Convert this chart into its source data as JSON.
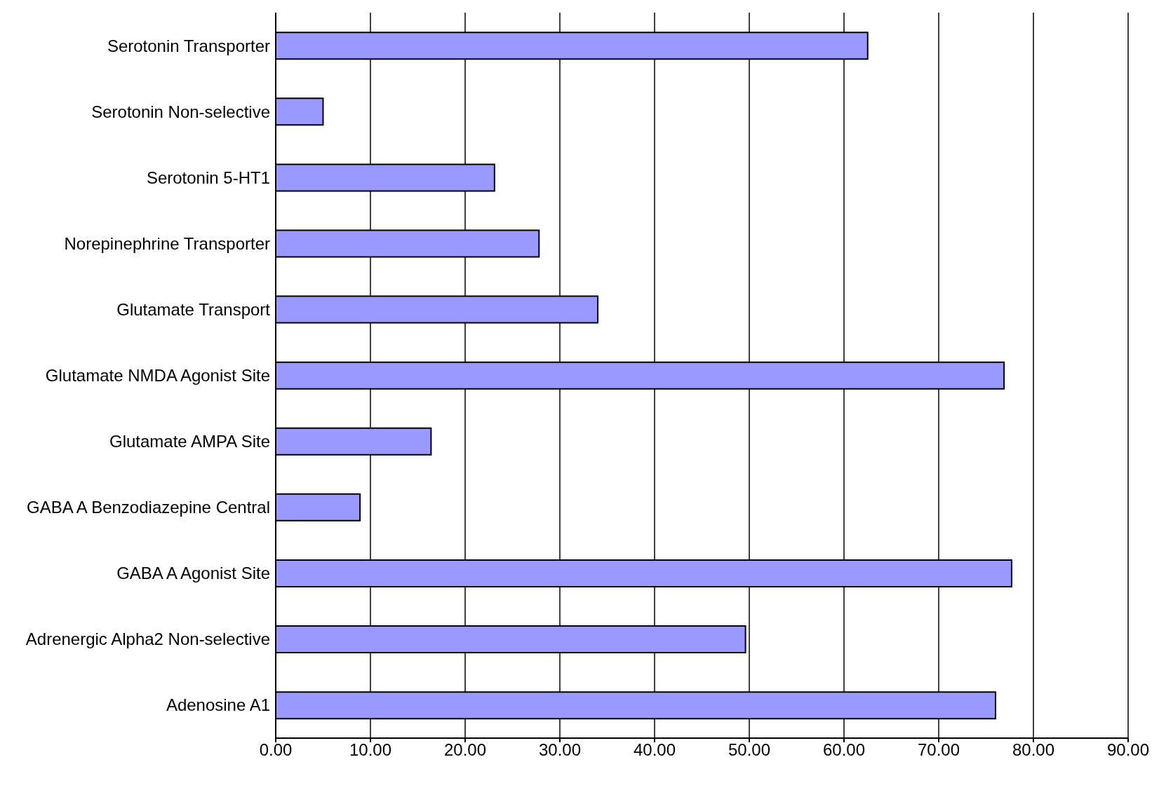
{
  "chart_data": {
    "type": "bar",
    "orientation": "horizontal",
    "categories": [
      "Serotonin Transporter",
      "Serotonin Non-selective",
      "Serotonin 5-HT1",
      "Norepinephrine Transporter",
      "Glutamate Transport",
      "Glutamate NMDA Agonist Site",
      "Glutamate AMPA Site",
      "GABA A Benzodiazepine Central",
      "GABA A Agonist Site",
      "Adrenergic Alpha2 Non-selective",
      "Adenosine A1"
    ],
    "values": [
      62.5,
      5.0,
      23.1,
      27.8,
      34.0,
      76.9,
      16.4,
      8.9,
      77.7,
      49.6,
      76.0
    ],
    "color": "#9999ff",
    "xlim": [
      0,
      90
    ],
    "xticks": [
      {
        "value": 0,
        "label": "0.00"
      },
      {
        "value": 10,
        "label": "10.00"
      },
      {
        "value": 20,
        "label": "20.00"
      },
      {
        "value": 30,
        "label": "30.00"
      },
      {
        "value": 40,
        "label": "40.00"
      },
      {
        "value": 50,
        "label": "50.00"
      },
      {
        "value": 60,
        "label": "60.00"
      },
      {
        "value": 70,
        "label": "70.00"
      },
      {
        "value": 80,
        "label": "80.00"
      },
      {
        "value": 90,
        "label": "90.00"
      }
    ],
    "grid": "x"
  }
}
